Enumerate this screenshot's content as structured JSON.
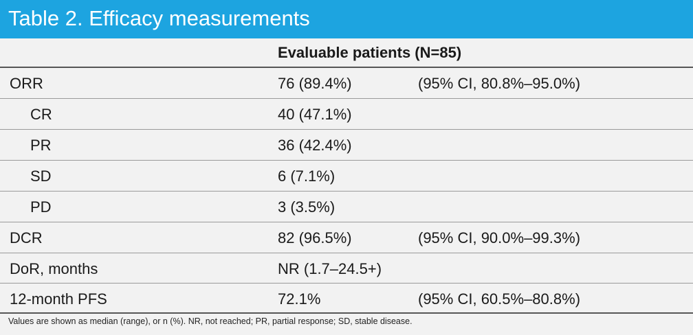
{
  "title": "Table 2. Efficacy measurements",
  "column_header": "Evaluable patients (N=85)",
  "rows": [
    {
      "label": "ORR",
      "value": "76 (89.4%)",
      "ci": "(95% CI, 80.8%–95.0%)"
    },
    {
      "label": "CR",
      "value": "40 (47.1%)",
      "ci": ""
    },
    {
      "label": "PR",
      "value": "36 (42.4%)",
      "ci": ""
    },
    {
      "label": "SD",
      "value": "6 (7.1%)",
      "ci": ""
    },
    {
      "label": "PD",
      "value": "3 (3.5%)",
      "ci": ""
    },
    {
      "label": "DCR",
      "value": "82 (96.5%)",
      "ci": "(95% CI, 90.0%–99.3%)"
    },
    {
      "label": "DoR, months",
      "value": "NR (1.7–24.5+)",
      "ci": ""
    },
    {
      "label": "12-month PFS",
      "value": "72.1%",
      "ci": "(95% CI, 60.5%–80.8%)"
    }
  ],
  "footnote": "Values are shown as median (range), or n (%). NR, not reached; PR, partial response; SD, stable disease.",
  "colors": {
    "title_bar": "#1da4e0",
    "background": "#f2f2f2"
  }
}
